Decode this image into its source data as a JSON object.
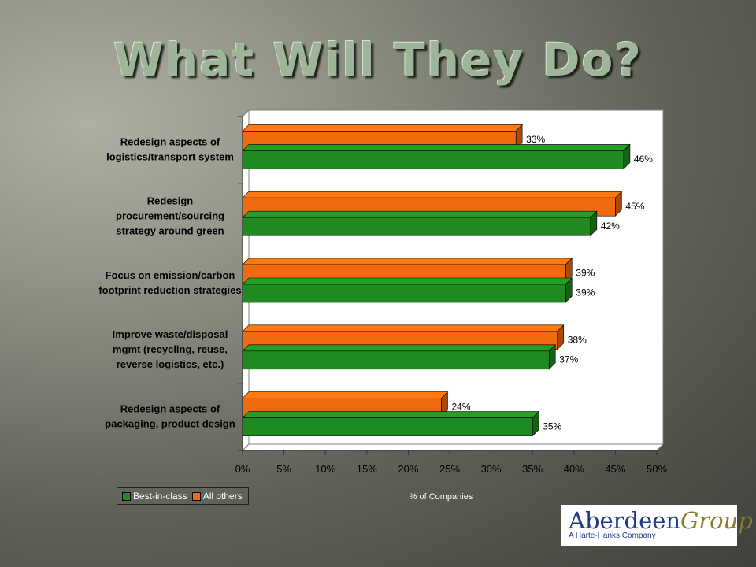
{
  "title": "What Will They Do?",
  "chart_data": {
    "type": "bar",
    "orientation": "horizontal",
    "categories": [
      [
        "Redesign aspects of",
        "logistics/transport system"
      ],
      [
        "Redesign",
        "procurement/sourcing",
        "strategy around green"
      ],
      [
        "Focus on emission/carbon",
        "footprint reduction strategies"
      ],
      [
        "Improve waste/disposal",
        "mgmt (recycling, reuse,",
        "reverse logistics, etc.)"
      ],
      [
        "Redesign aspects of",
        "packaging, product design"
      ]
    ],
    "series": [
      {
        "name": "All others",
        "values": [
          33,
          45,
          39,
          38,
          24
        ],
        "color": "#f26a10"
      },
      {
        "name": "Best-in-class",
        "values": [
          46,
          42,
          39,
          37,
          35
        ],
        "color": "#1f8a1f"
      }
    ],
    "xlabel": "% of Companies",
    "xlim": [
      0,
      50
    ],
    "xticks": [
      "0%",
      "5%",
      "10%",
      "15%",
      "20%",
      "25%",
      "30%",
      "35%",
      "40%",
      "45%",
      "50%"
    ],
    "legend": {
      "placement": "bottom-left",
      "order": [
        "Best-in-class",
        "All others"
      ]
    }
  },
  "logo": {
    "name_part1": "Aberdeen",
    "name_part2": "Group",
    "tagline": "A Harte-Hanks Company"
  }
}
